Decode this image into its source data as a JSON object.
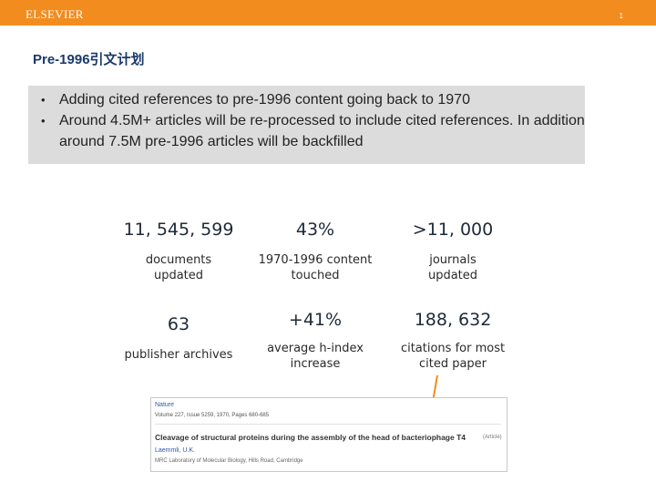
{
  "header": {
    "logo": "ELSEVIER",
    "page_number": "1"
  },
  "title": "Pre-1996引文计划",
  "bullets": [
    "Adding cited references to pre-1996 content going back to 1970",
    "Around 4.5M+ articles will be re-processed to include cited references. In addition around 7.5M pre-1996 articles will be backfilled"
  ],
  "stats": [
    {
      "value": "11, 545, 599",
      "label": "documents updated"
    },
    {
      "value": "43%",
      "label": "1970-1996 content touched"
    },
    {
      "value": ">11, 000",
      "label": "journals updated"
    },
    {
      "value": "63",
      "label": "publisher archives"
    },
    {
      "value": "+41%",
      "label": "average h-index increase"
    },
    {
      "value": "188, 632",
      "label": "citations for most cited paper"
    }
  ],
  "article_card": {
    "journal": "Nature",
    "meta": "Volume 227, Issue 5259, 1970, Pages 680-685",
    "title": "Cleavage of structural proteins during the assembly of the head of bacteriophage T4",
    "tag": "(Article)",
    "author": "Laemmli, U.K.",
    "affiliation": "MRC Laboratory of Molecular Biology, Hills Road, Cambridge"
  }
}
